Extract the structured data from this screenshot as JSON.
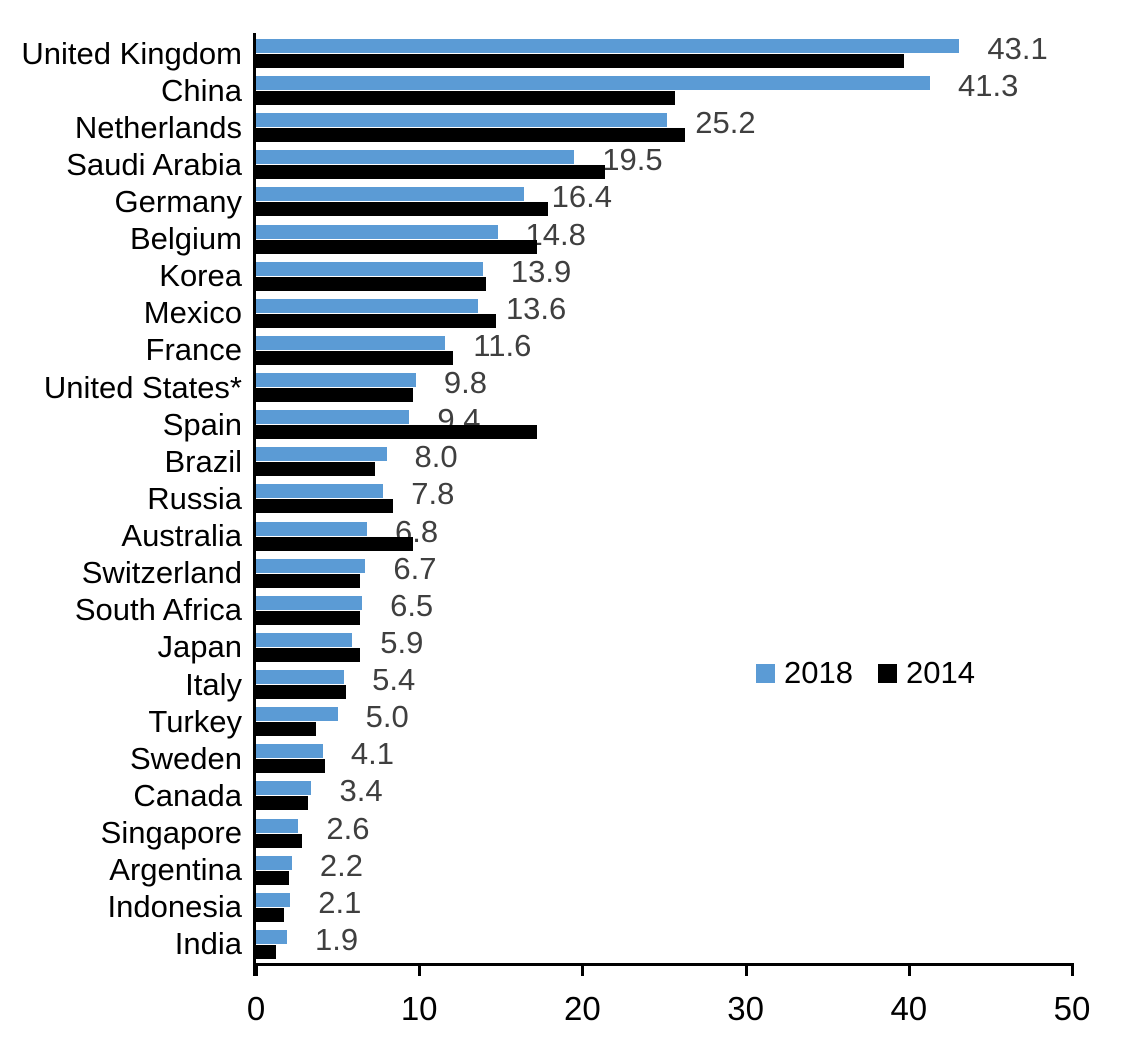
{
  "chart_data": {
    "type": "bar",
    "orientation": "horizontal",
    "title": "",
    "xlabel": "",
    "ylabel": "",
    "xlim": [
      0,
      50
    ],
    "x_ticks": [
      "0",
      "10",
      "20",
      "30",
      "40",
      "50"
    ],
    "grid": false,
    "legend_position": "middle-right",
    "categories": [
      "United Kingdom",
      "China",
      "Netherlands",
      "Saudi Arabia",
      "Germany",
      "Belgium",
      "Korea",
      "Mexico",
      "France",
      "United States*",
      "Spain",
      "Brazil",
      "Russia",
      "Australia",
      "Switzerland",
      "South Africa",
      "Japan",
      "Italy",
      "Turkey",
      "Sweden",
      "Canada",
      "Singapore",
      "Argentina",
      "Indonesia",
      "India"
    ],
    "series": [
      {
        "name": "2018",
        "color": "#5b9bd5",
        "values": [
          43.1,
          41.3,
          25.2,
          19.5,
          16.4,
          14.8,
          13.9,
          13.6,
          11.6,
          9.8,
          9.4,
          8.0,
          7.8,
          6.8,
          6.7,
          6.5,
          5.9,
          5.4,
          5.0,
          4.1,
          3.4,
          2.6,
          2.2,
          2.1,
          1.9
        ]
      },
      {
        "name": "2014",
        "color": "#000000",
        "values": [
          39.7,
          25.7,
          26.3,
          21.4,
          17.9,
          17.2,
          14.1,
          14.7,
          12.1,
          9.6,
          17.2,
          7.3,
          8.4,
          9.6,
          6.4,
          6.4,
          6.4,
          5.5,
          3.7,
          4.2,
          3.2,
          2.8,
          2.0,
          1.7,
          1.2
        ]
      }
    ],
    "data_labels": [
      "43.1",
      "41.3",
      "25.2",
      "19.5",
      "16.4",
      "14.8",
      "13.9",
      "13.6",
      "11.6",
      "9.8",
      "9.4",
      "8.0",
      "7.8",
      "6.8",
      "6.7",
      "6.5",
      "5.9",
      "5.4",
      "5.0",
      "4.1",
      "3.4",
      "2.6",
      "2.2",
      "2.1",
      "1.9"
    ],
    "data_label_series": "2018",
    "data_label_color": "#3f3f3f",
    "axis_color": "#000000"
  },
  "legend": {
    "item_2018": "2018",
    "item_2014": "2014"
  }
}
